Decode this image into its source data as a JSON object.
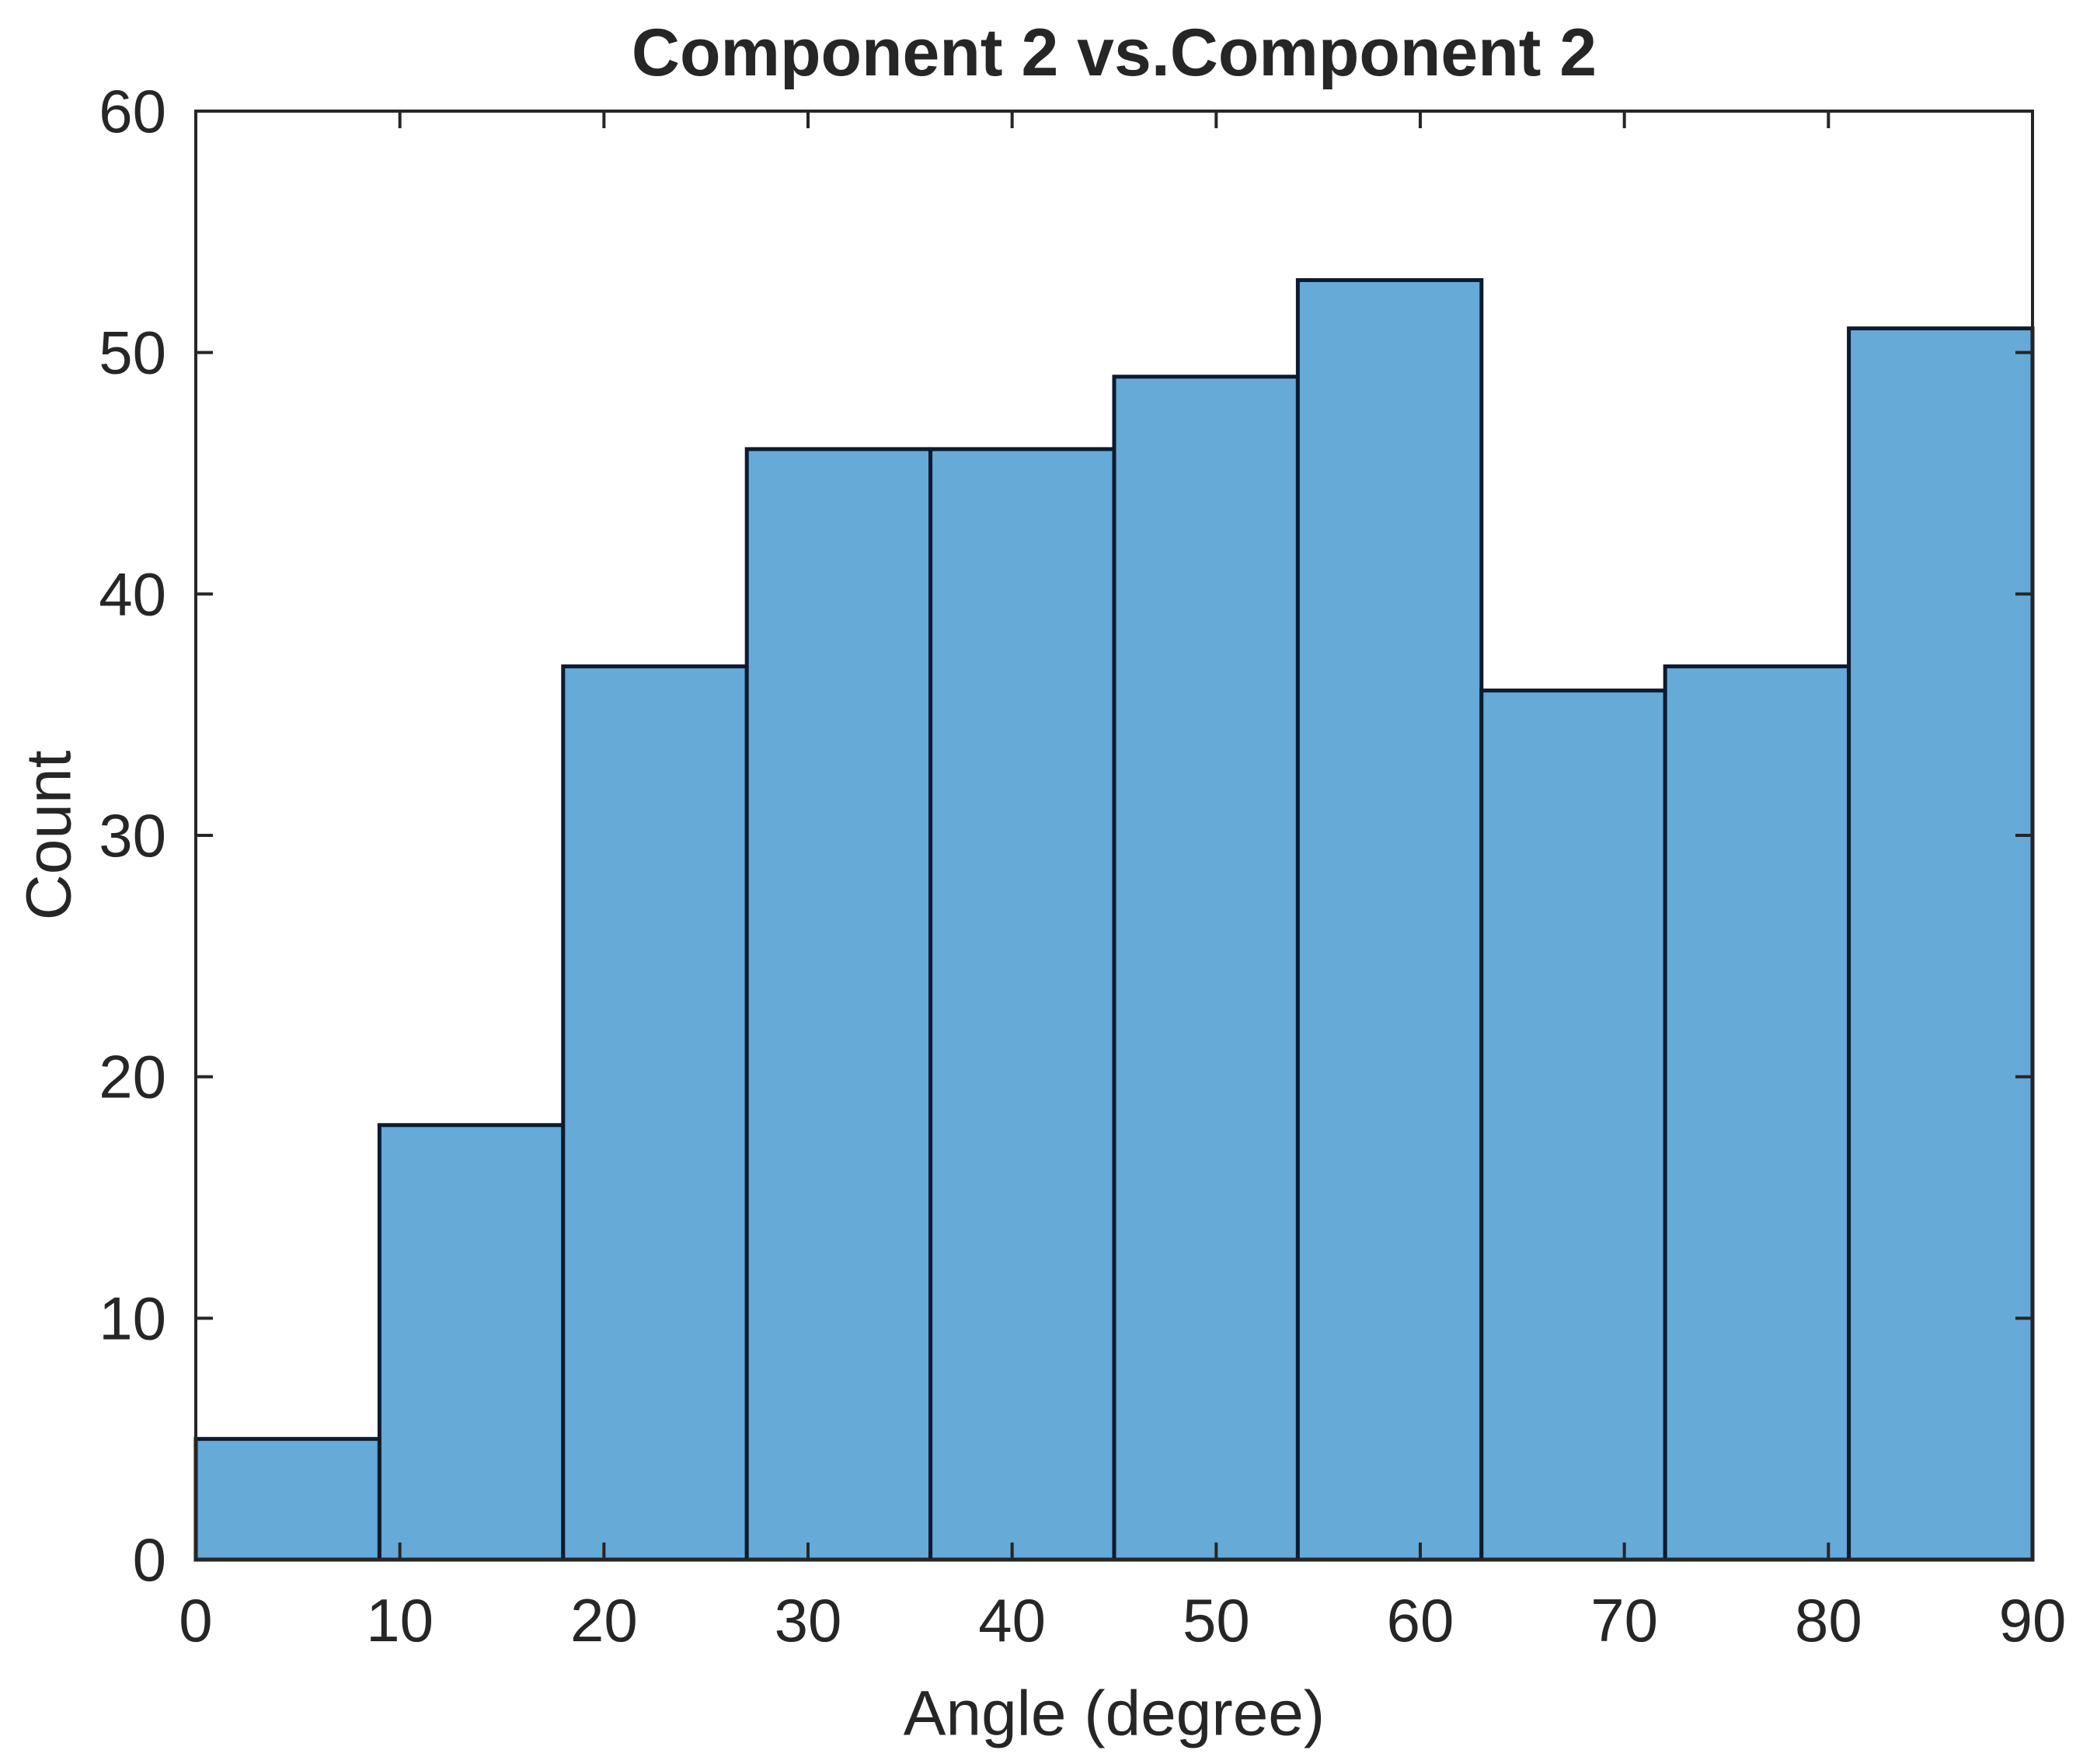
{
  "figure": {
    "title": "Component 2 vs.Component 2",
    "x_axis_label": "Angle (degree)",
    "y_axis_label": "Count"
  },
  "chart_data": {
    "type": "bar",
    "subtype": "histogram",
    "title": "Component 2 vs.Component 2",
    "xlabel": "Angle (degree)",
    "ylabel": "Count",
    "bin_edges": [
      0,
      9,
      18,
      27,
      36,
      45,
      54,
      63,
      72,
      81,
      90
    ],
    "counts": [
      5,
      18,
      37,
      46,
      46,
      49,
      53,
      36,
      37,
      51
    ],
    "xlim": [
      0,
      90
    ],
    "ylim": [
      0,
      60
    ],
    "x_ticks": [
      0,
      10,
      20,
      30,
      40,
      50,
      60,
      70,
      80,
      90
    ],
    "y_ticks": [
      0,
      10,
      20,
      30,
      40,
      50,
      60
    ],
    "grid": false,
    "legend_position": "none",
    "colors": {
      "bar_fill": "#66aad7",
      "bar_edge": "#0e1a2f",
      "axis": "#262626",
      "text": "#262626",
      "background": "#ffffff"
    }
  }
}
